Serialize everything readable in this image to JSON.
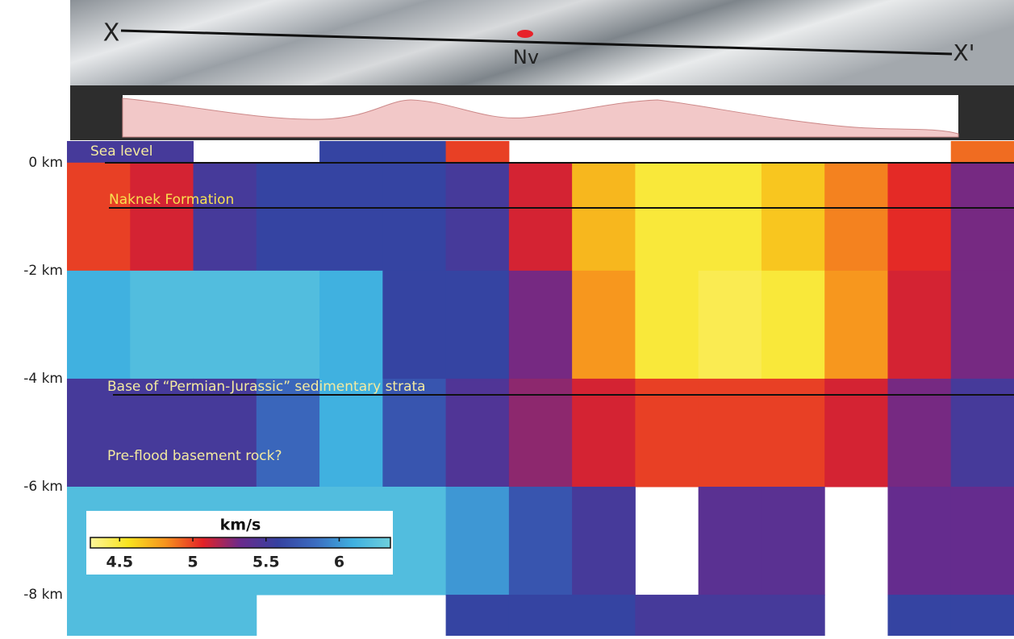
{
  "chart_data": {
    "type": "heatmap",
    "map_labels": [
      "X",
      "Nv",
      "X'"
    ],
    "annotations": [
      "Sea level",
      "Naknek Formation",
      "Base of “Permian-Jurassic” sedimentary strata",
      "Pre-flood basement rock?"
    ],
    "ylim": [
      0.4,
      -8.76
    ],
    "yticks": [
      {
        "value": 0,
        "label": "0 km"
      },
      {
        "value": -2,
        "label": "-2 km"
      },
      {
        "value": -4,
        "label": "-4 km"
      },
      {
        "value": -6,
        "label": "-6 km"
      },
      {
        "value": -8,
        "label": "-8 km"
      }
    ],
    "y_edges": [
      0.4,
      0,
      -2,
      -4,
      -6,
      -8,
      -8.76
    ],
    "values": [
      [
        5.5,
        5.5,
        null,
        null,
        5.6,
        5.6,
        5.0,
        null,
        null,
        null,
        null,
        null,
        null,
        null,
        4.9
      ],
      [
        5.0,
        5.1,
        5.5,
        5.6,
        5.6,
        5.6,
        5.5,
        5.1,
        4.7,
        4.5,
        4.5,
        4.65,
        4.85,
        5.05,
        5.3
      ],
      [
        6.1,
        6.2,
        6.2,
        6.2,
        6.1,
        5.6,
        5.6,
        5.3,
        4.8,
        4.5,
        4.45,
        4.5,
        4.8,
        5.1,
        5.3
      ],
      [
        5.5,
        5.5,
        5.5,
        5.8,
        6.1,
        5.7,
        5.45,
        5.25,
        5.1,
        5.0,
        5.0,
        5.0,
        5.1,
        5.3,
        5.5
      ],
      [
        6.2,
        6.2,
        6.2,
        6.2,
        6.2,
        6.2,
        6.0,
        5.7,
        5.5,
        null,
        5.4,
        5.4,
        null,
        5.35,
        5.35
      ],
      [
        6.2,
        6.2,
        6.2,
        null,
        null,
        null,
        5.6,
        5.6,
        5.6,
        5.5,
        5.5,
        5.5,
        null,
        5.6,
        5.6
      ]
    ],
    "colormap": [
      "#fdf59a",
      "#f8e41f",
      "#f7931e",
      "#e32227",
      "#6a2a8c",
      "#3541a0",
      "#3b6cc0",
      "#3fb0e0",
      "#6ecfdc"
    ],
    "colorbar": {
      "label": "km/s",
      "lim": [
        4.3,
        6.35
      ],
      "ticks": [
        4.5,
        5,
        5.5,
        6
      ]
    }
  }
}
